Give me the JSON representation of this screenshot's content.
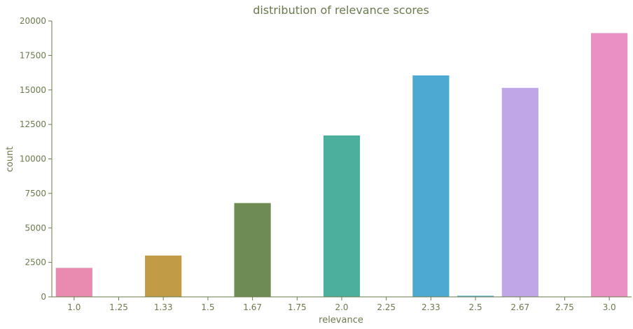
{
  "chart_data": {
    "type": "bar",
    "title": "distribution of relevance scores",
    "xlabel": "relevance",
    "ylabel": "count",
    "categories": [
      "1.0",
      "1.25",
      "1.33",
      "1.5",
      "1.67",
      "1.75",
      "2.0",
      "2.25",
      "2.33",
      "2.5",
      "2.67",
      "2.75",
      "3.0"
    ],
    "values": [
      2100,
      4,
      3000,
      5,
      6800,
      4,
      11700,
      3,
      16050,
      80,
      15150,
      6,
      19120
    ],
    "bar_colors": [
      "#e98bb1",
      "#e98bb1",
      "#c29b45",
      "#c29b45",
      "#6d8b52",
      "#6d8b52",
      "#4cae9c",
      "#4cae9c",
      "#4ca9d2",
      "#4ca9d2",
      "#c0a6e7",
      "#c0a6e7",
      "#e991c4"
    ],
    "ylim": [
      0,
      20000
    ],
    "yticks": [
      0,
      2500,
      5000,
      7500,
      10000,
      12500,
      15000,
      17500,
      20000
    ],
    "text_color": "#6b7a4e",
    "axis_color": "#6b7a4e",
    "grid": false
  }
}
